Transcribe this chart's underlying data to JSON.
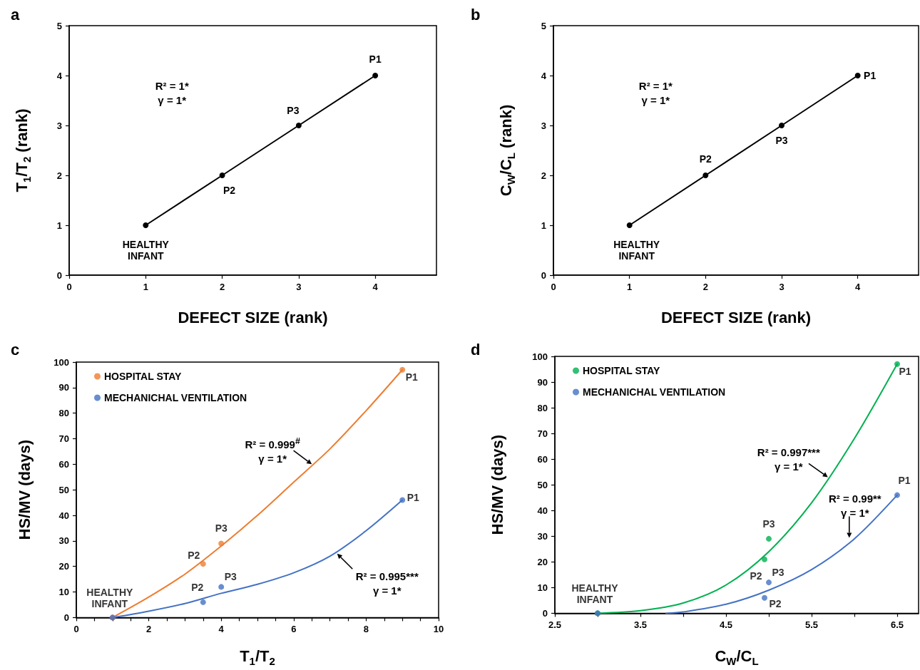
{
  "chart_data": [
    {
      "type": "line",
      "title": "a",
      "xlabel": "DEFECT SIZE (rank)",
      "ylabel": "T$_{1}$/T$_{2}$ (rank)",
      "x": [
        1,
        2,
        3,
        4
      ],
      "series": [
        {
          "color": "#000000",
          "values": [
            1,
            2,
            3,
            4
          ],
          "value_labels": [
            "HEALTHY\nINFANT",
            "P2",
            "P3",
            "P1"
          ]
        }
      ],
      "xlim": [
        0,
        4.8
      ],
      "xticks": [
        0,
        1,
        2,
        3,
        4
      ],
      "ylim": [
        0,
        5
      ],
      "yticks": [
        0,
        1,
        2,
        3,
        4,
        5
      ],
      "marker": "circle",
      "line_style": "solid",
      "grid": false,
      "legend": false,
      "annotations": [
        "R² = 1*\nγ = 1*"
      ]
    },
    {
      "type": "line",
      "title": "b",
      "xlabel": "DEFECT SIZE (rank)",
      "ylabel": "C$_{W}$/C$_{L}$ (rank)",
      "x": [
        1,
        2,
        3,
        4
      ],
      "series": [
        {
          "color": "#000000",
          "values": [
            1,
            2,
            3,
            4
          ],
          "value_labels": [
            "HEALTHY\nINFANT",
            "P2",
            "P3",
            "P1"
          ]
        }
      ],
      "xlim": [
        0,
        4.8
      ],
      "xticks": [
        0,
        1,
        2,
        3,
        4
      ],
      "ylim": [
        0,
        5
      ],
      "yticks": [
        0,
        1,
        2,
        3,
        4,
        5
      ],
      "marker": "circle",
      "line_style": "solid",
      "grid": false,
      "legend": false,
      "annotations": [
        "R² = 1*\nγ = 1*"
      ]
    },
    {
      "type": "scatter",
      "title": "c",
      "xlabel": "T$_{1}$/T$_{2}$",
      "ylabel": "HS/MV (days)",
      "x": [
        1,
        3.5,
        4,
        9
      ],
      "series": [
        {
          "name": "HOSPITAL STAY",
          "color": "#ed7d31",
          "values": [
            0,
            21,
            29,
            97
          ],
          "value_labels": [
            "HEALTHY\nINFANT",
            "P2",
            "P3",
            "P1"
          ]
        },
        {
          "name": "MECHANICHAL VENTILATION",
          "color": "#4472c4",
          "values": [
            0,
            6,
            12,
            46
          ],
          "value_labels": [
            null,
            "P2",
            "P3",
            "P1"
          ]
        },
        {
          "type": "line",
          "color": "#ed7d31",
          "marker": "none",
          "x": [
            1,
            2,
            3,
            4,
            5,
            6,
            7,
            8,
            9
          ],
          "values": [
            0,
            8,
            17,
            28,
            40,
            53,
            66,
            81,
            97
          ]
        },
        {
          "type": "line",
          "color": "#4472c4",
          "marker": "none",
          "x": [
            1,
            2,
            3,
            4,
            5,
            6,
            7,
            8,
            9
          ],
          "values": [
            0,
            2.5,
            5.5,
            9.5,
            13,
            17.5,
            24,
            34,
            46
          ]
        }
      ],
      "xlim": [
        0,
        10
      ],
      "xticks": [
        0,
        {
          "value": 0.5,
          "label": null
        },
        {
          "value": 1,
          "label": null
        },
        {
          "value": 1.5,
          "label": null
        },
        2,
        {
          "value": 2.5,
          "label": null
        },
        {
          "value": 3,
          "label": null
        },
        {
          "value": 3.5,
          "label": null
        },
        4,
        {
          "value": 4.5,
          "label": null
        },
        {
          "value": 5,
          "label": null
        },
        {
          "value": 5.5,
          "label": null
        },
        6,
        {
          "value": 6.5,
          "label": null
        },
        {
          "value": 7,
          "label": null
        },
        {
          "value": 7.5,
          "label": null
        },
        8,
        {
          "value": 8.5,
          "label": null
        },
        {
          "value": 9,
          "label": null
        },
        {
          "value": 9.5,
          "label": null
        },
        10
      ],
      "ylim": [
        0,
        100
      ],
      "yticks": [
        0,
        10,
        20,
        30,
        40,
        50,
        60,
        70,
        80,
        90,
        100
      ],
      "marker": "circle",
      "grid": false,
      "legend": "top left",
      "annotations": [
        {
          "text": "R² = 0.999$^{#}$\nγ = 1*",
          "x": 6.5,
          "y": 60
        },
        {
          "text": "R² = 0.995***\nγ = 1*",
          "x": 7.2,
          "y": 25
        }
      ]
    },
    {
      "type": "scatter",
      "title": "d",
      "xlabel": "C$_{W}$/C$_{L}$",
      "ylabel": "HS/MV (days)",
      "x": [
        3,
        4.95,
        5,
        6.5
      ],
      "series": [
        {
          "name": "HOSPITAL STAY",
          "color": "#00b050",
          "values": [
            0,
            21,
            29,
            97
          ],
          "value_labels": [
            "HEALTHY\nINFANT",
            "P2",
            "P3",
            "P1"
          ]
        },
        {
          "name": "MECHANICHAL VENTILATION",
          "color": "#4472c4",
          "values": [
            0,
            6,
            12,
            46
          ],
          "value_labels": [
            null,
            "P2",
            "P3",
            "P1"
          ]
        },
        {
          "type": "line",
          "color": "#00b050",
          "marker": "none",
          "x": [
            3,
            3.5,
            4,
            4.5,
            5,
            5.5,
            6,
            6.5
          ],
          "values": [
            0,
            1,
            4,
            11,
            24,
            43,
            68,
            97
          ]
        },
        {
          "type": "line",
          "color": "#4472c4",
          "marker": "none",
          "x": [
            3.8,
            4,
            4.5,
            5,
            5.5,
            6,
            6.5
          ],
          "values": [
            0,
            0.5,
            3.5,
            9,
            17,
            29,
            46
          ]
        }
      ],
      "xlim": [
        2.5,
        6.75
      ],
      "xticks": [
        2.5,
        {
          "value": 3,
          "label": null
        },
        3.5,
        {
          "value": 4,
          "label": null
        },
        4.5,
        {
          "value": 5,
          "label": null
        },
        5.5,
        {
          "value": 6,
          "label": null
        },
        6.5
      ],
      "ylim": [
        0,
        100
      ],
      "yticks": [
        0,
        10,
        20,
        30,
        40,
        50,
        60,
        70,
        80,
        90,
        100
      ],
      "marker": "circle",
      "grid": false,
      "legend": "top left",
      "annotations": [
        {
          "text": "R² = 0.997***\nγ = 1*",
          "x": 5.69,
          "y": 53
        },
        {
          "text": "R² = 0.99**\nγ = 1*",
          "x": 5.94,
          "y": 29.4
        }
      ]
    }
  ]
}
